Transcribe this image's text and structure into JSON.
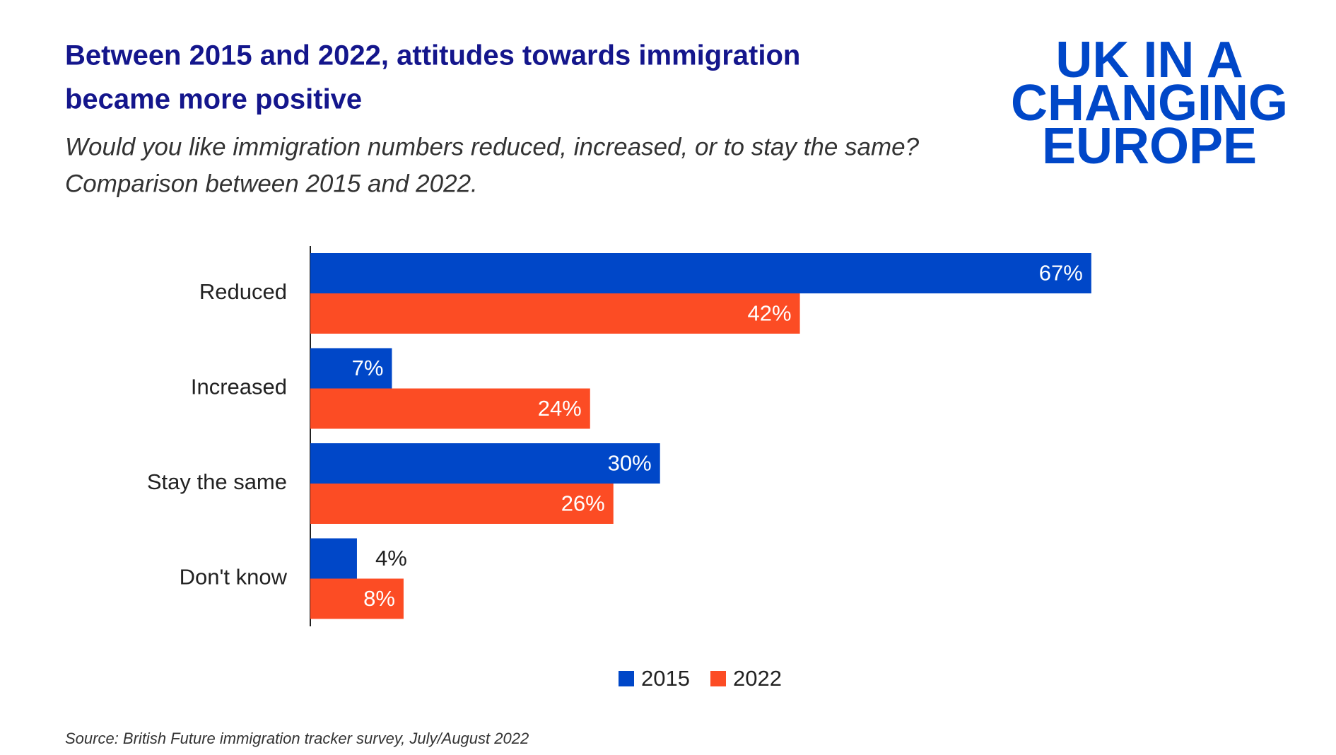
{
  "chart_data": {
    "type": "hbar",
    "title": [
      "Between 2015 and 2022, attitudes towards immigration",
      "became more positive"
    ],
    "subtitle": [
      "Would you like immigration numbers reduced, increased, or to stay the same?",
      "Comparison between 2015 and 2022."
    ],
    "logo": [
      "UK IN A",
      "CHANGING",
      "EUROPE"
    ],
    "source": "Source: British Future immigration tracker survey, July/August 2022",
    "categories": [
      "Reduced",
      "Increased",
      "Stay the same",
      "Don't know"
    ],
    "series": [
      {
        "name": "2015",
        "color": "#0047c8",
        "values": [
          67,
          7,
          30,
          4
        ],
        "value_labels": [
          "67%",
          "7%",
          "30%",
          "4%"
        ]
      },
      {
        "name": "2022",
        "color": "#fc4c24",
        "values": [
          42,
          24,
          26,
          8
        ],
        "value_labels": [
          "42%",
          "24%",
          "26%",
          "8%"
        ]
      }
    ],
    "legend": "bottom"
  }
}
